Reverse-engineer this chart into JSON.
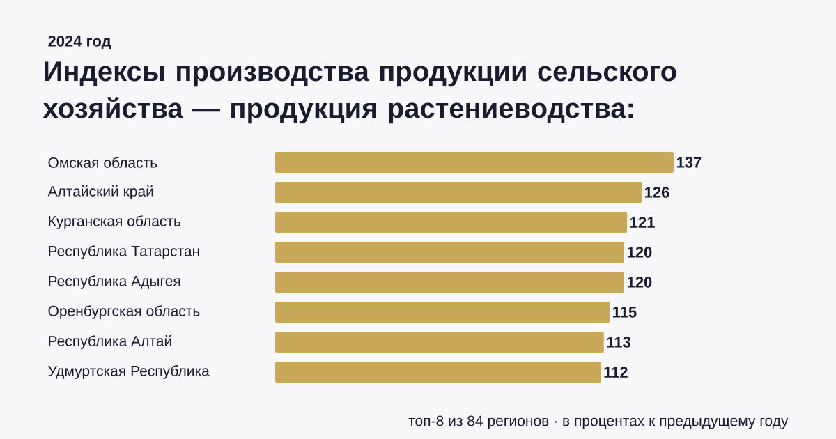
{
  "chart_data": {
    "type": "bar",
    "orientation": "horizontal",
    "subtitle": "2024 год",
    "title": "Индексы производства продукции сельского хозяйства — продукция растениеводства:",
    "categories": [
      "Омская область",
      "Алтайский край",
      "Курганская область",
      "Республика Татарстан",
      "Республика Адыгея",
      "Оренбургская область",
      "Республика Алтай",
      "Удмуртская Республика"
    ],
    "values": [
      137,
      126,
      121,
      120,
      120,
      115,
      113,
      112
    ],
    "color": "#c8a95a",
    "tick_labels": "y",
    "data_labels": true,
    "annotations": [
      "топ-8 из 84 регионов · в процентах к предыдущему году"
    ]
  }
}
